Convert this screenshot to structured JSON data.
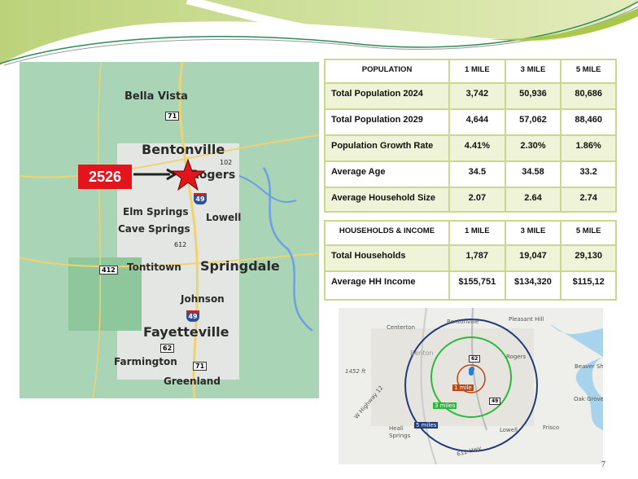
{
  "population_table": {
    "headers": [
      "POPULATION",
      "1 MILE",
      "3 MILE",
      "5 MILE"
    ],
    "rows": [
      [
        "Total Population 2024",
        "3,742",
        "50,936",
        "80,686"
      ],
      [
        "Total Population 2029",
        "4,644",
        "57,062",
        "88,460"
      ],
      [
        "Population Growth Rate",
        "4.41%",
        "2.30%",
        "1.86%"
      ],
      [
        "Average Age",
        "34.5",
        "34.58",
        "33.2"
      ],
      [
        "Average Household Size",
        "2.07",
        "2.64",
        "2.74"
      ]
    ]
  },
  "income_table": {
    "headers": [
      "HOUSEHOLDS & INCOME",
      "1 MILE",
      "3 MILE",
      "5 MILE"
    ],
    "rows": [
      [
        "Total Households",
        "1,787",
        "19,047",
        "29,130"
      ],
      [
        "Average HH Income",
        "$155,751",
        "$134,320",
        "$115,12"
      ]
    ]
  },
  "location_map": {
    "marker_label": "2526",
    "marker_color": "#e4141c",
    "cities": [
      "Bella Vista",
      "Bentonville",
      "Rogers",
      "Elm Springs",
      "Lowell",
      "Cave Springs",
      "Tontitown",
      "Springdale",
      "Johnson",
      "Fayetteville",
      "Farmington",
      "Greenland"
    ],
    "routes": [
      "71",
      "102",
      "49",
      "612",
      "412",
      "49",
      "62",
      "71"
    ]
  },
  "radius_map": {
    "places": [
      "Centerton",
      "Bentonville",
      "Pleasant Hill",
      "Benton",
      "Rogers",
      "Beaver Sho",
      "1452 ft",
      "W Highway 12",
      "Oak Grove",
      "Heali",
      "Springs",
      "Lowell",
      "Frisco",
      "612 Hwy"
    ],
    "routes": [
      "62",
      "49"
    ],
    "rings": [
      {
        "label": "1 mile",
        "color": "#c0450e"
      },
      {
        "label": "3 miles",
        "color": "#2db83d"
      },
      {
        "label": "5 miles",
        "color": "#1f3a7a"
      }
    ]
  },
  "page_number": "7",
  "theme": {
    "accent": "#b5cc6a",
    "border": "#c9d88a"
  }
}
